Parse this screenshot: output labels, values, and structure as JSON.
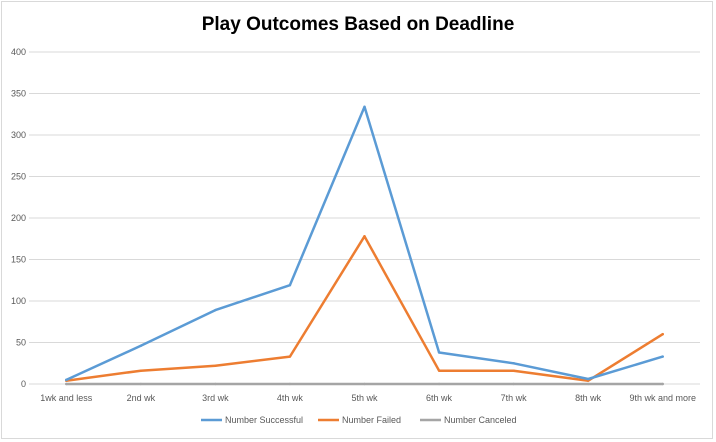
{
  "chart_data": {
    "type": "line",
    "title": "Play Outcomes Based on Deadline",
    "categories": [
      "1wk and less",
      "2nd wk",
      "3rd wk",
      "4th wk",
      "5th wk",
      "6th wk",
      "7th wk",
      "8th wk",
      "9th wk and more"
    ],
    "series": [
      {
        "name": "Number Successful",
        "color": "#5b9bd5",
        "values": [
          5,
          46,
          89,
          119,
          334,
          38,
          25,
          6,
          33
        ]
      },
      {
        "name": "Number Failed",
        "color": "#ed7d31",
        "values": [
          4,
          16,
          22,
          33,
          178,
          16,
          16,
          4,
          60
        ]
      },
      {
        "name": "Number Canceled",
        "color": "#a5a5a5",
        "values": [
          0,
          0,
          0,
          0,
          0,
          0,
          0,
          0,
          0
        ]
      }
    ],
    "ylim": [
      0,
      400
    ],
    "yticks": [
      0,
      50,
      100,
      150,
      200,
      250,
      300,
      350,
      400
    ],
    "grid": true,
    "legend": "bottom"
  }
}
